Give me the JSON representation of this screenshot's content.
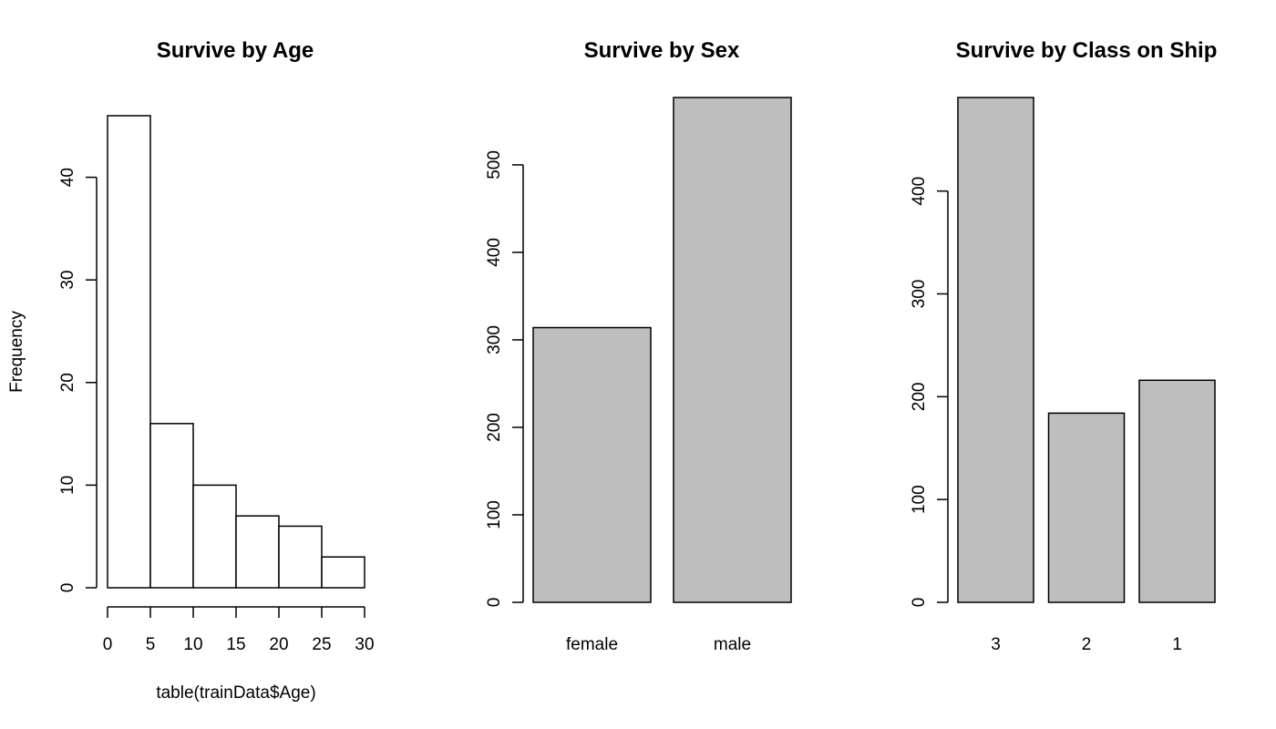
{
  "colors": {
    "hist_fill": "#ffffff",
    "bar_fill": "#bebebe",
    "stroke": "#000000"
  },
  "chart_data": [
    {
      "type": "bar",
      "title": "Survive by Age",
      "xlabel": "table(trainData$Age)",
      "ylabel": "Frequency",
      "bins": [
        [
          0,
          5
        ],
        [
          5,
          10
        ],
        [
          10,
          15
        ],
        [
          15,
          20
        ],
        [
          20,
          25
        ],
        [
          25,
          30
        ]
      ],
      "values": [
        46,
        16,
        10,
        7,
        6,
        3
      ],
      "xlim": [
        0,
        30
      ],
      "ylim": [
        0,
        46
      ],
      "x_ticks": [
        0,
        5,
        10,
        15,
        20,
        25,
        30
      ],
      "y_ticks": [
        0,
        10,
        20,
        30,
        40
      ],
      "grid": false
    },
    {
      "type": "bar",
      "title": "Survive by Sex",
      "xlabel": "",
      "ylabel": "",
      "categories": [
        "female",
        "male"
      ],
      "values": [
        314,
        577
      ],
      "ylim": [
        0,
        577
      ],
      "y_ticks": [
        0,
        100,
        200,
        300,
        400,
        500
      ],
      "grid": false
    },
    {
      "type": "bar",
      "title": "Survive by Class on Ship",
      "xlabel": "",
      "ylabel": "",
      "categories": [
        "3",
        "2",
        "1"
      ],
      "values": [
        491,
        184,
        216
      ],
      "ylim": [
        0,
        491
      ],
      "y_ticks": [
        0,
        100,
        200,
        300,
        400
      ],
      "grid": false
    }
  ]
}
